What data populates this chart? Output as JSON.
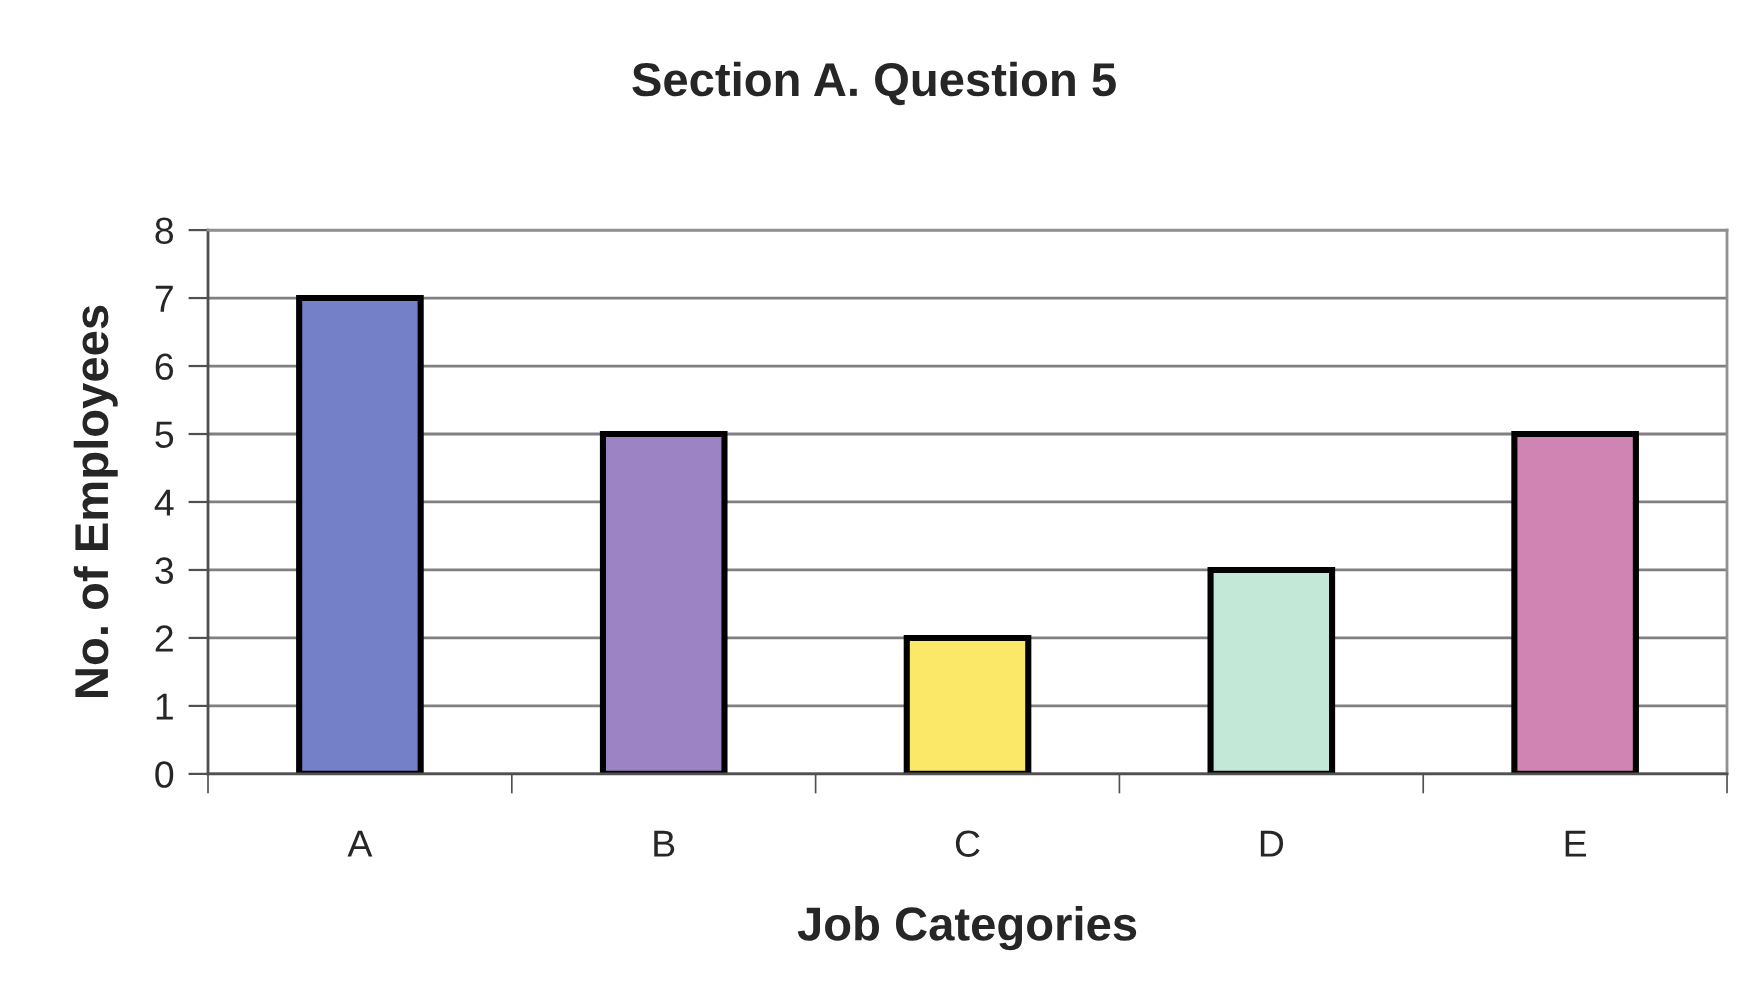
{
  "chart_data": {
    "type": "bar",
    "title": "Section A. Question 5",
    "xlabel": "Job Categories",
    "ylabel": "No. of Employees",
    "categories": [
      "A",
      "B",
      "C",
      "D",
      "E"
    ],
    "values": [
      7,
      5,
      2,
      3,
      5
    ],
    "colors": [
      "#7480c8",
      "#9c84c4",
      "#fce868",
      "#c4e8d8",
      "#d084b4"
    ],
    "ylim": [
      0,
      8
    ],
    "yticks": [
      0,
      1,
      2,
      3,
      4,
      5,
      6,
      7,
      8
    ],
    "grid": "y"
  }
}
